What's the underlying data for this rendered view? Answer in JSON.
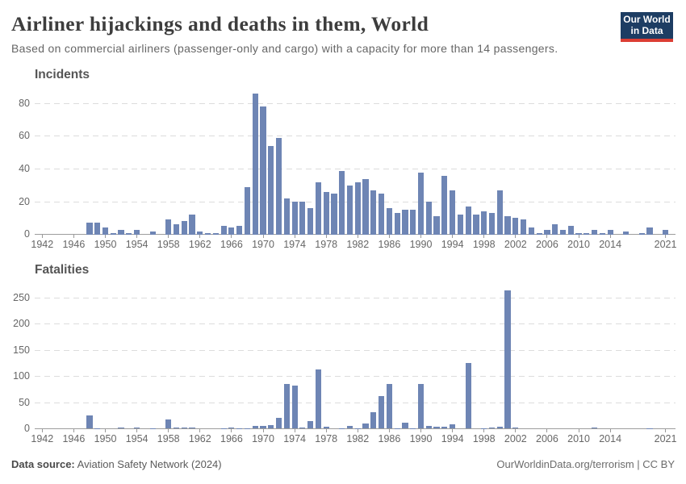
{
  "header": {
    "title": "Airliner hijackings and deaths in them, World",
    "subtitle": "Based on commercial airliners (passenger-only and cargo) with a capacity for more than 14 passengers.",
    "logo": {
      "line1": "Our World",
      "line2": "in Data"
    }
  },
  "footer": {
    "source_label": "Data source:",
    "source_value": "Aviation Safety Network (2024)",
    "right_text": "OurWorldinData.org/terrorism | CC BY"
  },
  "colors": {
    "bar": "#6e85b4",
    "gridline": "#dcdcdc",
    "baseline": "#9d9d9d",
    "axis_text": "#666666",
    "panel_title": "#555555",
    "title": "#3d3d3d",
    "subtitle": "#666666",
    "logo_bg": "#1d3d63",
    "logo_accent": "#dc3e34"
  },
  "chart_data": [
    {
      "type": "bar",
      "title": "Incidents",
      "x_label": "",
      "y_label": "",
      "x_start_year": 1942,
      "x_end_year": 2021,
      "x": [
        1942,
        1943,
        1944,
        1945,
        1946,
        1947,
        1948,
        1949,
        1950,
        1951,
        1952,
        1953,
        1954,
        1955,
        1956,
        1957,
        1958,
        1959,
        1960,
        1961,
        1962,
        1963,
        1964,
        1965,
        1966,
        1967,
        1968,
        1969,
        1970,
        1971,
        1972,
        1973,
        1974,
        1975,
        1976,
        1977,
        1978,
        1979,
        1980,
        1981,
        1982,
        1983,
        1984,
        1985,
        1986,
        1987,
        1988,
        1989,
        1990,
        1991,
        1992,
        1993,
        1994,
        1995,
        1996,
        1997,
        1998,
        1999,
        2000,
        2001,
        2002,
        2003,
        2004,
        2005,
        2006,
        2007,
        2008,
        2009,
        2010,
        2011,
        2012,
        2013,
        2014,
        2015,
        2016,
        2017,
        2018,
        2019,
        2020,
        2021
      ],
      "values": [
        0,
        0,
        0,
        0,
        0,
        0,
        7,
        7,
        4,
        1,
        3,
        1,
        3,
        0,
        2,
        0,
        9,
        6,
        8,
        12,
        2,
        1,
        1,
        5,
        4,
        5,
        29,
        86,
        78,
        54,
        59,
        22,
        20,
        20,
        16,
        32,
        26,
        25,
        39,
        30,
        32,
        34,
        27,
        25,
        16,
        13,
        15,
        15,
        38,
        20,
        11,
        36,
        27,
        12,
        17,
        12,
        14,
        13,
        27,
        11,
        10,
        9,
        4,
        1,
        3,
        6,
        3,
        5,
        1,
        1,
        3,
        1,
        3,
        0,
        2,
        0,
        1,
        4,
        0,
        3
      ],
      "y_ticks": [
        0,
        20,
        40,
        60,
        80
      ],
      "ylim": [
        0,
        88
      ],
      "x_tick_years": [
        1942,
        1946,
        1950,
        1954,
        1958,
        1962,
        1966,
        1970,
        1974,
        1978,
        1982,
        1986,
        1990,
        1994,
        1998,
        2002,
        2006,
        2010,
        2014,
        2021
      ],
      "grid": true,
      "legend": "none"
    },
    {
      "type": "bar",
      "title": "Fatalities",
      "x_label": "",
      "y_label": "",
      "x_start_year": 1942,
      "x_end_year": 2021,
      "x": [
        1942,
        1943,
        1944,
        1945,
        1946,
        1947,
        1948,
        1949,
        1950,
        1951,
        1952,
        1953,
        1954,
        1955,
        1956,
        1957,
        1958,
        1959,
        1960,
        1961,
        1962,
        1963,
        1964,
        1965,
        1966,
        1967,
        1968,
        1969,
        1970,
        1971,
        1972,
        1973,
        1974,
        1975,
        1976,
        1977,
        1978,
        1979,
        1980,
        1981,
        1982,
        1983,
        1984,
        1985,
        1986,
        1987,
        1988,
        1989,
        1990,
        1991,
        1992,
        1993,
        1994,
        1995,
        1996,
        1997,
        1998,
        1999,
        2000,
        2001,
        2002,
        2003,
        2004,
        2005,
        2006,
        2007,
        2008,
        2009,
        2010,
        2011,
        2012,
        2013,
        2014,
        2015,
        2016,
        2017,
        2018,
        2019,
        2020,
        2021
      ],
      "values": [
        0,
        0,
        0,
        0,
        0,
        0,
        25,
        1,
        0,
        0,
        2,
        0,
        3,
        0,
        1,
        0,
        18,
        2,
        3,
        3,
        0,
        0,
        0,
        1,
        2,
        1,
        1,
        5,
        6,
        7,
        21,
        86,
        82,
        2,
        14,
        114,
        4,
        0,
        1,
        5,
        1,
        10,
        32,
        63,
        86,
        1,
        12,
        1,
        85,
        6,
        4,
        4,
        8,
        0,
        125,
        0,
        1,
        2,
        4,
        265,
        3,
        0,
        0,
        0,
        0,
        0,
        0,
        0,
        0,
        0,
        2,
        0,
        0,
        0,
        0,
        0,
        0,
        1,
        0,
        0
      ],
      "y_ticks": [
        0,
        50,
        100,
        150,
        200,
        250
      ],
      "ylim": [
        0,
        270
      ],
      "x_tick_years": [
        1942,
        1946,
        1950,
        1954,
        1958,
        1962,
        1966,
        1970,
        1974,
        1978,
        1982,
        1986,
        1990,
        1994,
        1998,
        2002,
        2006,
        2010,
        2014,
        2021
      ],
      "grid": true,
      "legend": "none"
    }
  ]
}
